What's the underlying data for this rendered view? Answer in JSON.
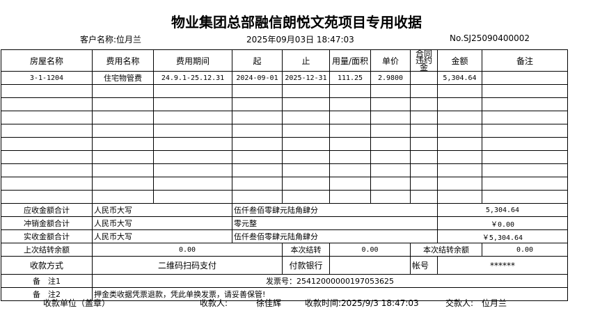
{
  "title": "物业集团总部融信朗悦文苑项目专用收据",
  "customer": "客户名称:位月兰",
  "datetime": "2025年09月03日 18:47:03",
  "number": "No.SJ25090400002",
  "headers": [
    "房屋名称",
    "费用名称",
    "费用期间",
    "起",
    "止",
    "用量/面积",
    "单价",
    "合同违约金",
    "金额",
    "备注"
  ],
  "rows": [
    [
      "3-1-1204",
      "住宅物管费",
      "24.9.1-25.12.31",
      "2024-09-01",
      "2025-12-31",
      "111.25",
      "2.9800",
      "",
      "5,304.64",
      ""
    ]
  ],
  "summary": [
    {
      "label": "应收金额合计",
      "rmb": "人民币大写",
      "words": "伍仟叁佰零肆元陆角肆分",
      "amount": "5,304.64"
    },
    {
      "label": "冲销金额合计",
      "rmb": "人民币大写",
      "words": "零元整",
      "amount": "￥0.00"
    },
    {
      "label": "实收金额合计",
      "rmb": "人民币大写",
      "words": "伍仟叁佰零肆元陆角肆分",
      "amount": "￥5,304.64"
    }
  ],
  "balance": {
    "prev_label": "上次结转余额",
    "prev": "0.00",
    "cur_label": "本次结转",
    "cur": "0.00",
    "rest_label": "本次结转余额",
    "rest": "0.00"
  },
  "payment": {
    "label": "收款方式",
    "method": "二维码扫码支付",
    "bank_label": "付款银行",
    "bank": "",
    "account_label": "帐号",
    "account": "******"
  },
  "remark1": {
    "label": "备　注1",
    "value": "发票号：25412000000197053625"
  },
  "remark2": {
    "label": "备　注2",
    "value": "押金类收据凭票退款，凭此单换发票，请妥善保管!"
  },
  "footer": {
    "unit": "收款单位（盖章）",
    "payee_label": "收款人:",
    "payee": "徐佳辉",
    "time": "收款时间:2025/9/3 18:47:03",
    "payer_label": "交款人:",
    "payer": "位月兰"
  }
}
